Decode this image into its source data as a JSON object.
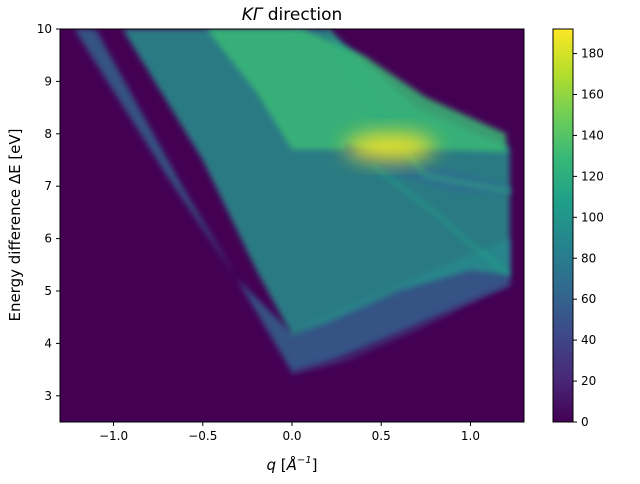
{
  "chart_data": {
    "type": "heatmap",
    "title": "KΓ direction",
    "title_parts": {
      "italic": "KΓ",
      "rest": " direction"
    },
    "xlabel": "q [Å⁻¹]",
    "xlabel_parts": {
      "var": "q",
      "unit_open": " [",
      "unit": "Å",
      "exp": "−1",
      "unit_close": "]"
    },
    "ylabel": "Energy difference ΔE [eV]",
    "xlim": [
      -1.3,
      1.3
    ],
    "ylim": [
      2.5,
      10.0
    ],
    "xticks": [
      -1.0,
      -0.5,
      0.0,
      0.5,
      1.0
    ],
    "xtick_labels": [
      "−1.0",
      "−0.5",
      "0.0",
      "0.5",
      "1.0"
    ],
    "yticks": [
      3,
      4,
      5,
      6,
      7,
      8,
      9,
      10
    ],
    "ytick_labels": [
      "3",
      "4",
      "5",
      "6",
      "7",
      "8",
      "9",
      "10"
    ],
    "colorbar": {
      "colormap": "viridis",
      "range": [
        0,
        192
      ],
      "ticks": [
        0,
        20,
        40,
        60,
        80,
        100,
        120,
        140,
        160,
        180
      ],
      "tick_labels": [
        "0",
        "20",
        "40",
        "60",
        "80",
        "100",
        "120",
        "140",
        "160",
        "180"
      ]
    },
    "background_value": 0,
    "bands": [
      {
        "name": "band-A",
        "value": 60,
        "lower": [
          [
            -1.1,
            10.0
          ],
          [
            -0.6,
            6.9
          ],
          [
            -0.25,
            4.9
          ],
          [
            0.0,
            3.45
          ],
          [
            0.25,
            3.7
          ],
          [
            0.6,
            4.2
          ],
          [
            1.0,
            4.8
          ],
          [
            1.22,
            5.1
          ]
        ],
        "upper": [
          [
            -1.22,
            10.0
          ],
          [
            -0.7,
            7.2
          ],
          [
            -0.3,
            5.2
          ],
          [
            0.0,
            4.2
          ],
          [
            0.25,
            4.6
          ],
          [
            0.6,
            5.1
          ],
          [
            1.0,
            5.7
          ],
          [
            1.22,
            6.0
          ]
        ]
      },
      {
        "name": "band-B",
        "value": 95,
        "lower": [
          [
            -0.95,
            10.0
          ],
          [
            -0.5,
            7.5
          ],
          [
            -0.2,
            5.4
          ],
          [
            0.0,
            4.15
          ],
          [
            0.2,
            4.4
          ],
          [
            0.6,
            5.0
          ],
          [
            1.0,
            5.4
          ],
          [
            1.22,
            5.3
          ]
        ],
        "upper": [
          [
            0.2,
            10.0
          ],
          [
            0.4,
            9.4
          ],
          [
            0.7,
            8.5
          ],
          [
            1.0,
            8.05
          ],
          [
            1.22,
            7.75
          ]
        ]
      },
      {
        "name": "band-C",
        "value": 130,
        "lower": [
          [
            -0.48,
            10.0
          ],
          [
            -0.2,
            8.8
          ],
          [
            0.0,
            7.7
          ],
          [
            0.4,
            7.7
          ],
          [
            0.75,
            7.7
          ],
          [
            1.2,
            7.65
          ]
        ],
        "upper": [
          [
            0.05,
            10.0
          ],
          [
            0.4,
            9.5
          ],
          [
            0.75,
            8.7
          ],
          [
            1.2,
            8.0
          ]
        ]
      },
      {
        "name": "band-D",
        "value": 70,
        "lower": [
          [
            0.3,
            7.6
          ],
          [
            0.6,
            7.2
          ],
          [
            0.9,
            6.9
          ],
          [
            1.22,
            6.85
          ]
        ],
        "upper": [
          [
            0.3,
            7.8
          ],
          [
            0.6,
            7.5
          ],
          [
            0.9,
            7.3
          ],
          [
            1.22,
            7.0
          ]
        ]
      }
    ],
    "hotspot": {
      "x": 0.55,
      "y": 7.75,
      "value": 192
    },
    "ridges": [
      {
        "name": "ridge-low",
        "value": 40,
        "points": [
          [
            0.0,
            3.45
          ],
          [
            0.3,
            3.7
          ],
          [
            0.7,
            4.3
          ],
          [
            1.22,
            5.2
          ]
        ]
      },
      {
        "name": "ridge-mid",
        "value": 110,
        "points": [
          [
            0.45,
            7.4
          ],
          [
            0.8,
            6.5
          ],
          [
            1.0,
            5.9
          ],
          [
            1.22,
            5.3
          ]
        ]
      },
      {
        "name": "ridge-cross",
        "value": 120,
        "points": [
          [
            0.2,
            10.0
          ],
          [
            0.5,
            8.3
          ],
          [
            0.75,
            7.2
          ],
          [
            1.22,
            6.9
          ]
        ]
      }
    ]
  }
}
